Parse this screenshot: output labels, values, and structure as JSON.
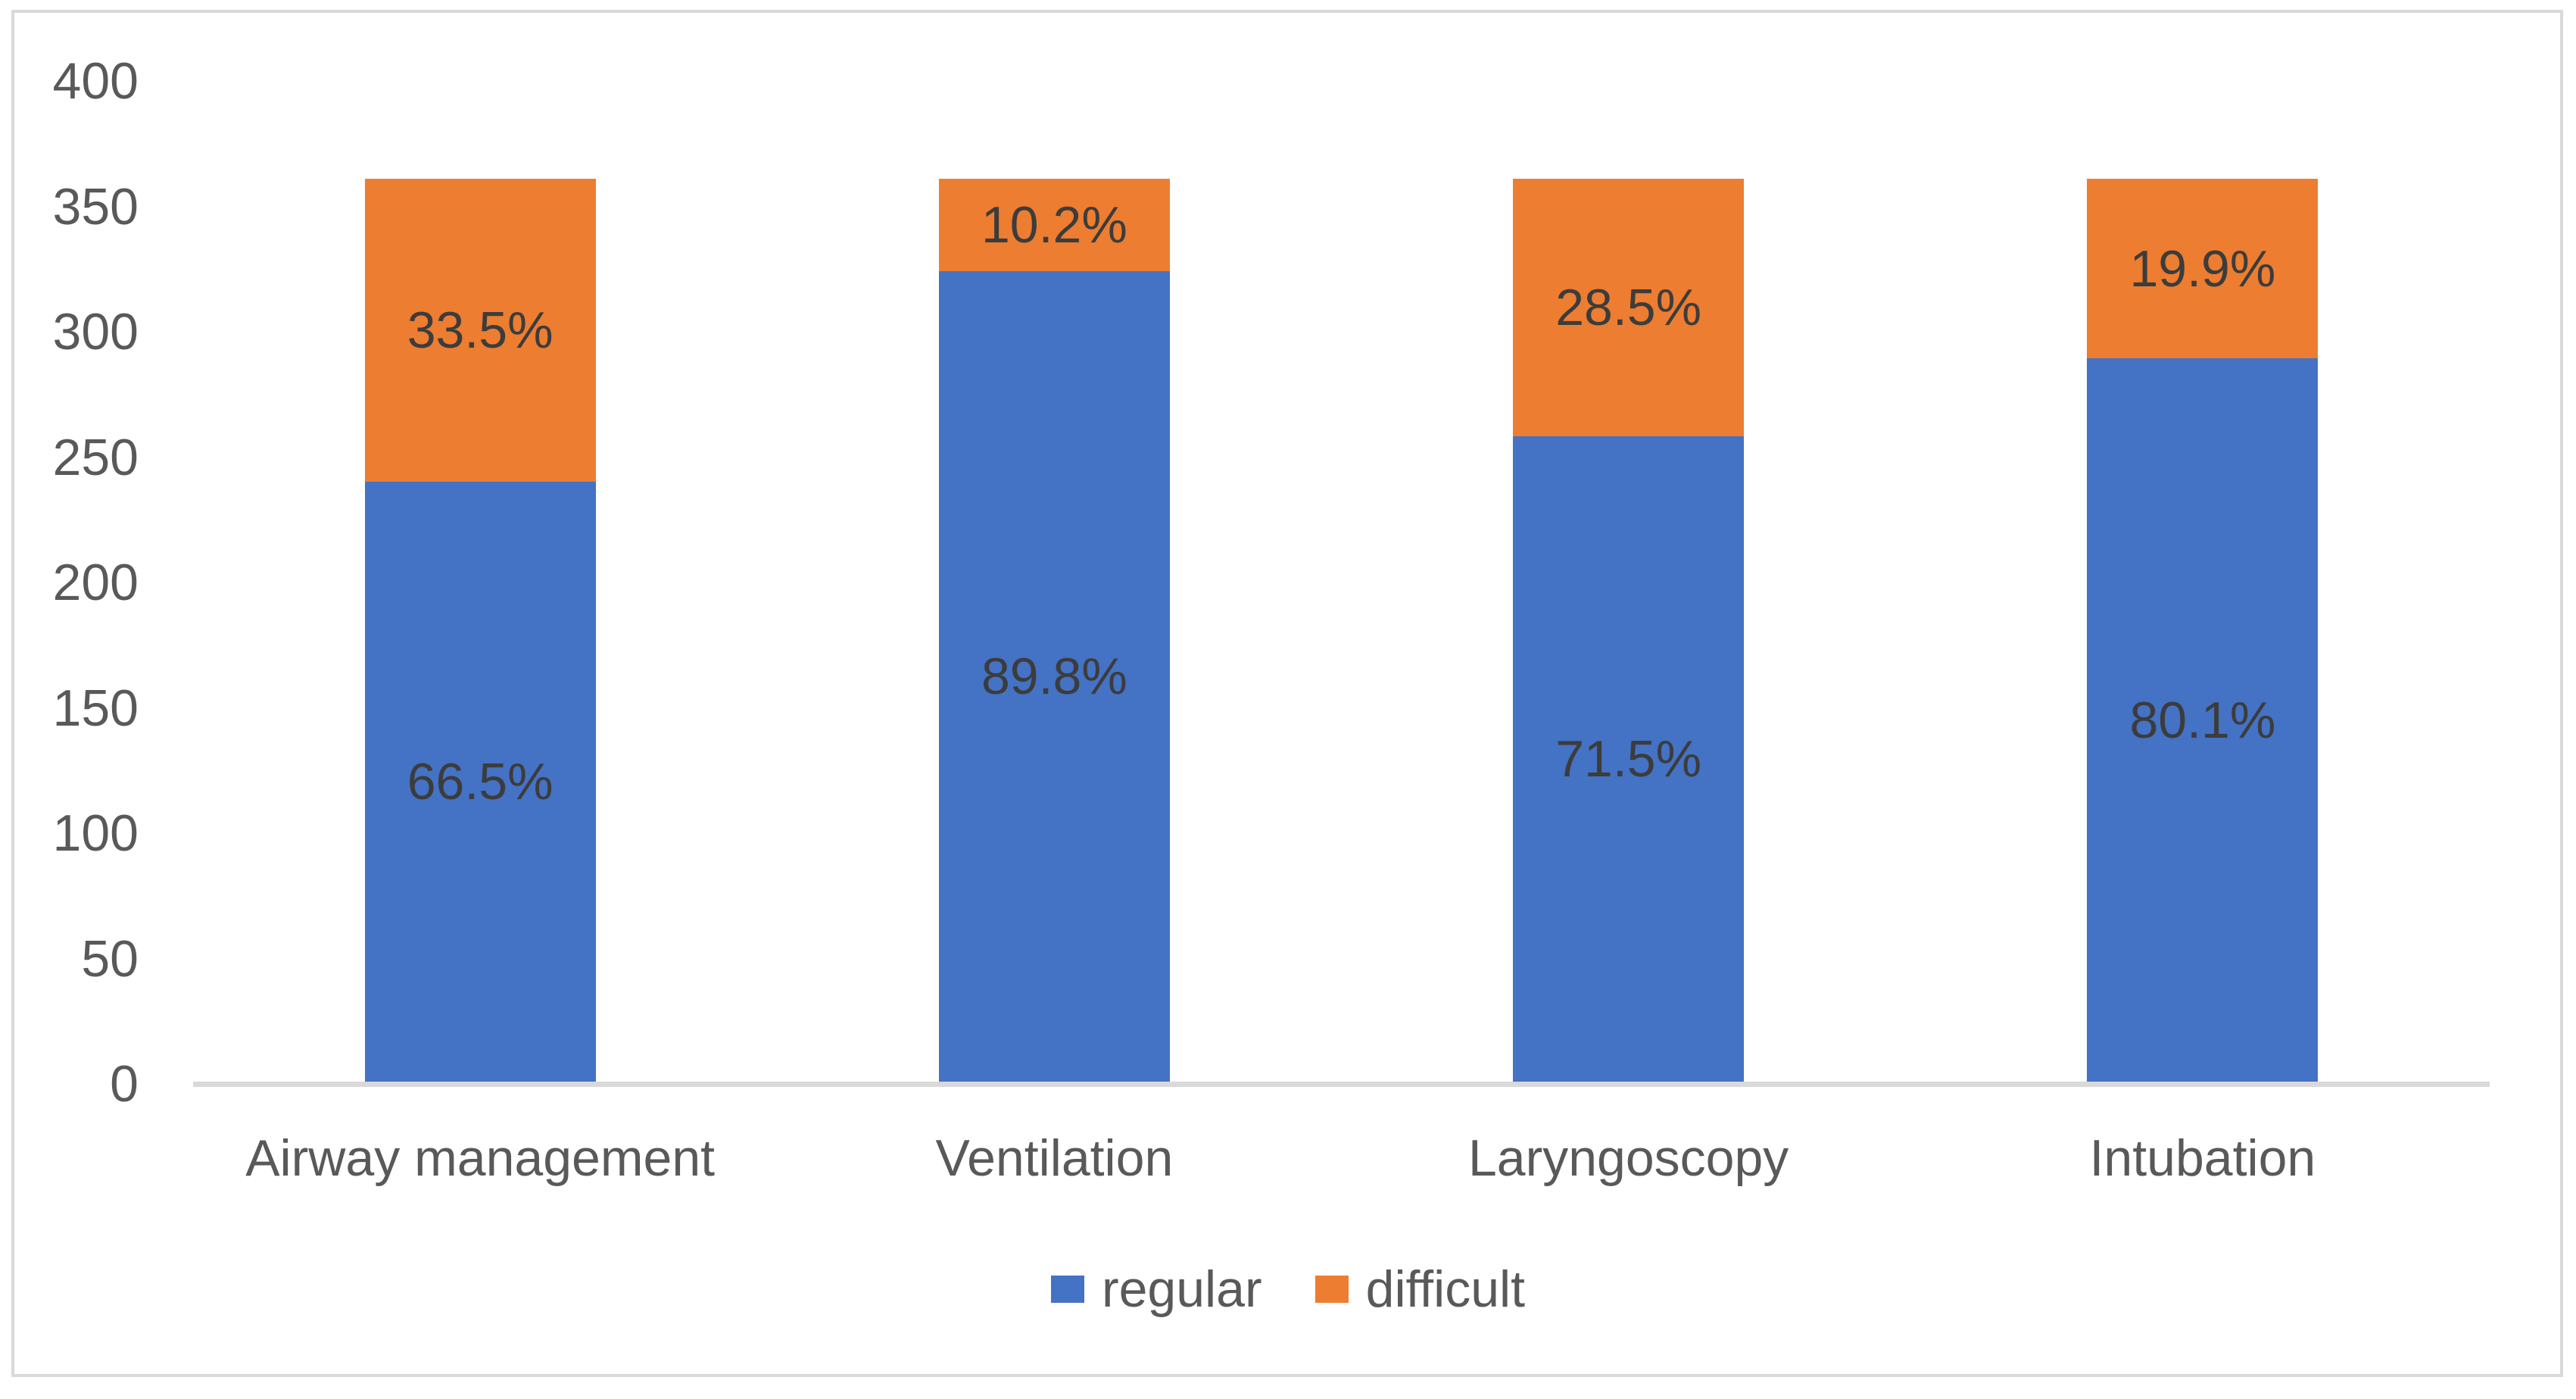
{
  "chart_data": {
    "type": "bar",
    "variant": "stacked-column",
    "title": "",
    "xlabel": "",
    "ylabel": "",
    "categories": [
      "Airway management",
      "Ventilation",
      "Laryngoscopy",
      "Intubation"
    ],
    "series": [
      {
        "name": "regular",
        "color": "#4472C4",
        "percent_labels": [
          "66.5%",
          "89.8%",
          "71.5%",
          "80.1%"
        ],
        "values": [
          239.4,
          323.3,
          257.4,
          288.4
        ]
      },
      {
        "name": "difficult",
        "color": "#ED7D31",
        "percent_labels": [
          "33.5%",
          "10.2%",
          "28.5%",
          "19.9%"
        ],
        "values": [
          120.6,
          36.7,
          102.6,
          71.6
        ]
      }
    ],
    "bar_total": 360,
    "ylim": [
      0,
      400
    ],
    "yticks": [
      0,
      50,
      100,
      150,
      200,
      250,
      300,
      350,
      400
    ],
    "grid": false,
    "legend_position": "bottom-center"
  },
  "colors": {
    "series_regular": "#4472C4",
    "series_difficult": "#ED7D31",
    "axis_line": "#D9D9D9",
    "chart_border": "#D9D9D9",
    "tick_text": "#595959",
    "category_text": "#595959",
    "legend_text": "#595959",
    "data_label_text": "#3C3C3C",
    "background": "#FFFFFF"
  }
}
